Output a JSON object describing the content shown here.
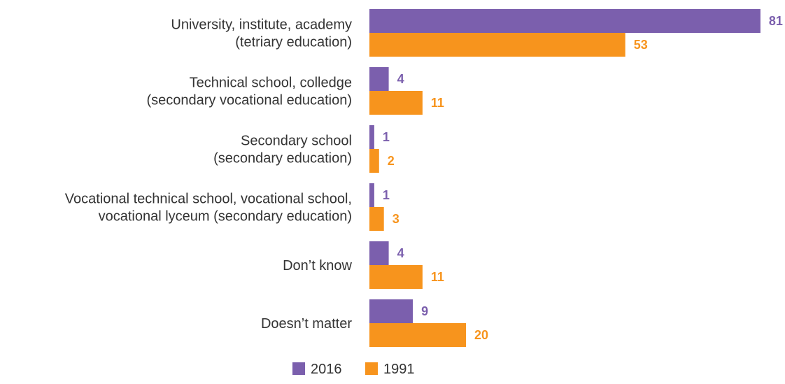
{
  "chart_data": {
    "type": "bar",
    "orientation": "horizontal",
    "categories": [
      [
        "University, institute, academy",
        "(tetriary education)"
      ],
      [
        "Technical school, colledge",
        "(secondary vocational education)"
      ],
      [
        "Secondary school",
        "(secondary education)"
      ],
      [
        "Vocational technical school, vocational school,",
        "vocational lyceum (secondary education)"
      ],
      [
        "Don’t know"
      ],
      [
        "Doesn’t matter"
      ]
    ],
    "series": [
      {
        "name": "2016",
        "color": "#7b5fad",
        "values": [
          81,
          4,
          1,
          1,
          4,
          9
        ]
      },
      {
        "name": "1991",
        "color": "#f7941d",
        "values": [
          53,
          11,
          2,
          3,
          11,
          20
        ]
      }
    ],
    "xlim": [
      0,
      100
    ],
    "title": "",
    "xlabel": "",
    "ylabel": "",
    "grid": false,
    "legend": "bottom-center"
  }
}
